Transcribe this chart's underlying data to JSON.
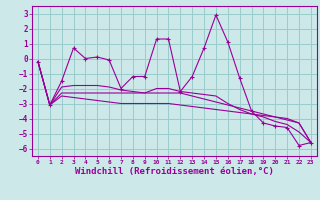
{
  "bg_color": "#cce8e8",
  "grid_color": "#99cccc",
  "line_color": "#990099",
  "xlim": [
    -0.5,
    23.5
  ],
  "ylim": [
    -6.5,
    3.5
  ],
  "xlabel": "Windchill (Refroidissement éolien,°C)",
  "xticks": [
    0,
    1,
    2,
    3,
    4,
    5,
    6,
    7,
    8,
    9,
    10,
    11,
    12,
    13,
    14,
    15,
    16,
    17,
    18,
    19,
    20,
    21,
    22,
    23
  ],
  "yticks": [
    -6,
    -5,
    -4,
    -3,
    -2,
    -1,
    0,
    1,
    2,
    3
  ],
  "curve1_x": [
    0,
    1,
    2,
    3,
    4,
    5,
    6,
    7,
    8,
    9,
    10,
    11,
    12,
    13,
    14,
    15,
    16,
    17,
    18,
    19,
    20,
    21,
    22,
    23
  ],
  "curve1_y": [
    -0.2,
    -3.1,
    -1.5,
    0.7,
    0.0,
    0.1,
    -0.1,
    -2.0,
    -1.2,
    -1.2,
    1.3,
    1.3,
    -2.2,
    -1.2,
    0.7,
    2.9,
    1.1,
    -1.3,
    -3.5,
    -4.3,
    -4.5,
    -4.6,
    -5.8,
    -5.6
  ],
  "curve2_x": [
    0,
    1,
    2,
    3,
    4,
    5,
    6,
    7,
    8,
    9,
    10,
    11,
    12,
    13,
    14,
    15,
    16,
    17,
    18,
    19,
    20,
    21,
    22,
    23
  ],
  "curve2_y": [
    -0.2,
    -3.1,
    -2.3,
    -2.3,
    -2.3,
    -2.3,
    -2.3,
    -2.3,
    -2.3,
    -2.3,
    -2.3,
    -2.3,
    -2.3,
    -2.5,
    -2.7,
    -2.9,
    -3.1,
    -3.3,
    -3.5,
    -3.7,
    -3.9,
    -4.1,
    -4.3,
    -5.6
  ],
  "curve3_x": [
    0,
    1,
    2,
    3,
    4,
    5,
    6,
    7,
    8,
    9,
    10,
    11,
    12,
    13,
    14,
    15,
    16,
    17,
    18,
    19,
    20,
    21,
    22,
    23
  ],
  "curve3_y": [
    -0.2,
    -3.1,
    -2.5,
    -2.6,
    -2.7,
    -2.8,
    -2.9,
    -3.0,
    -3.0,
    -3.0,
    -3.0,
    -3.0,
    -3.1,
    -3.2,
    -3.3,
    -3.4,
    -3.5,
    -3.6,
    -3.7,
    -3.8,
    -3.9,
    -4.0,
    -4.3,
    -5.6
  ],
  "curve4_x": [
    0,
    1,
    2,
    3,
    4,
    5,
    6,
    7,
    8,
    9,
    10,
    11,
    12,
    13,
    14,
    15,
    16,
    17,
    18,
    19,
    20,
    21,
    22,
    23
  ],
  "curve4_y": [
    -0.2,
    -3.1,
    -1.9,
    -1.8,
    -1.8,
    -1.8,
    -1.9,
    -2.1,
    -2.2,
    -2.3,
    -2.0,
    -2.0,
    -2.2,
    -2.3,
    -2.4,
    -2.5,
    -3.0,
    -3.4,
    -3.7,
    -3.9,
    -4.2,
    -4.4,
    -4.9,
    -5.6
  ]
}
